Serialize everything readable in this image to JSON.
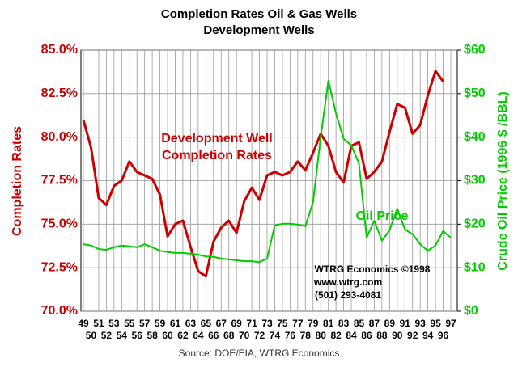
{
  "chart_data": {
    "type": "line",
    "title": "Completion Rates Oil & Gas Wells",
    "subtitle": "Development Wells",
    "ylabel": "Completion Rates",
    "y2label": "Crude Oil Price (1996 $ /BBL)",
    "source": "Source: DOE/EIA, WTRG Economics",
    "annotations": [
      "Development Well",
      "Completion Rates",
      "Oil Price",
      "WTRG Economics  ©1998",
      "www.wtrg.com",
      "(501) 293-4081"
    ],
    "categories": [
      "49",
      "50",
      "51",
      "52",
      "53",
      "54",
      "55",
      "56",
      "57",
      "58",
      "59",
      "60",
      "61",
      "62",
      "63",
      "64",
      "65",
      "66",
      "67",
      "68",
      "69",
      "70",
      "71",
      "72",
      "73",
      "74",
      "75",
      "76",
      "77",
      "78",
      "79",
      "80",
      "81",
      "82",
      "83",
      "84",
      "85",
      "86",
      "87",
      "88",
      "89",
      "90",
      "91",
      "92",
      "93",
      "94",
      "95",
      "96",
      "97"
    ],
    "series": [
      {
        "name": "Development Well Completion Rates",
        "color": "#cc0000",
        "axis": "y",
        "values": [
          81.0,
          79.4,
          76.5,
          76.1,
          77.2,
          77.5,
          78.6,
          78.0,
          77.8,
          77.6,
          76.7,
          74.3,
          75.0,
          75.2,
          73.7,
          72.3,
          72.0,
          74.0,
          74.8,
          75.2,
          74.5,
          76.3,
          77.1,
          76.4,
          77.8,
          78.0,
          77.8,
          78.0,
          78.6,
          78.1,
          79.1,
          80.2,
          79.5,
          78.0,
          77.4,
          79.5,
          79.7,
          77.6,
          78.0,
          78.6,
          80.3,
          81.9,
          81.7,
          80.2,
          80.7,
          82.4,
          83.8,
          83.2,
          null
        ]
      },
      {
        "name": "Oil Price",
        "color": "#00cc00",
        "axis": "y2",
        "values": [
          15.4,
          15.1,
          14.3,
          14.1,
          14.7,
          15.1,
          14.9,
          14.7,
          15.4,
          14.7,
          13.9,
          13.6,
          13.4,
          13.4,
          13.2,
          13.0,
          12.6,
          12.5,
          12.1,
          11.9,
          11.7,
          11.5,
          11.5,
          11.3,
          12.1,
          19.7,
          20.1,
          20.1,
          19.9,
          19.5,
          25.1,
          40.0,
          53.0,
          45.5,
          39.6,
          38.1,
          34.0,
          16.9,
          20.8,
          16.2,
          18.6,
          23.6,
          18.8,
          17.7,
          15.4,
          13.9,
          15.1,
          18.4,
          16.9
        ]
      }
    ],
    "ylim": [
      70,
      85
    ],
    "yticks": [
      {
        "value": 70,
        "label": "70.0%"
      },
      {
        "value": 72.5,
        "label": "72.5%"
      },
      {
        "value": 75,
        "label": "75.0%"
      },
      {
        "value": 77.5,
        "label": "77.5%"
      },
      {
        "value": 80,
        "label": "80.0%"
      },
      {
        "value": 82.5,
        "label": "82.5%"
      },
      {
        "value": 85,
        "label": "85.0%"
      }
    ],
    "y2lim": [
      0,
      60
    ],
    "y2ticks": [
      {
        "value": 0,
        "label": "$0"
      },
      {
        "value": 10,
        "label": "$10"
      },
      {
        "value": 20,
        "label": "$20"
      },
      {
        "value": 30,
        "label": "$30"
      },
      {
        "value": 40,
        "label": "$40"
      },
      {
        "value": 50,
        "label": "$50"
      },
      {
        "value": 60,
        "label": "$60"
      }
    ],
    "grid": true
  }
}
